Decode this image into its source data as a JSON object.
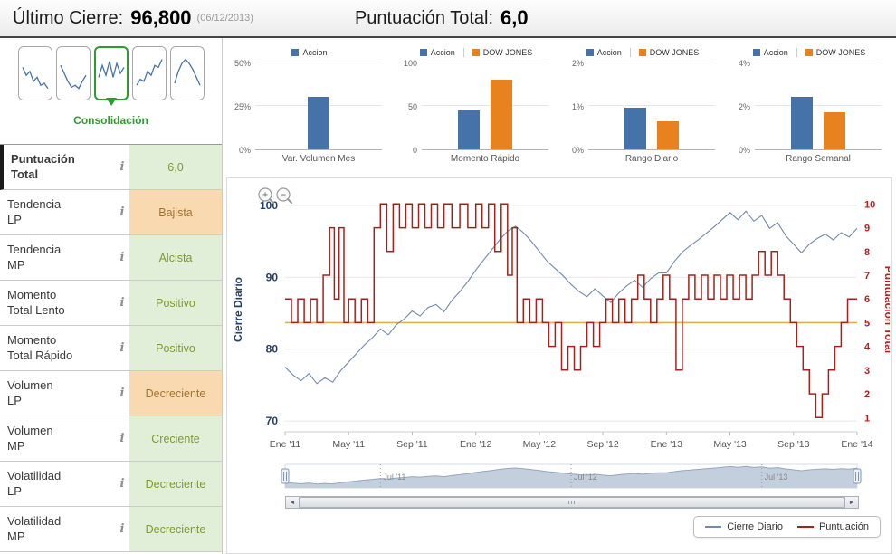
{
  "header": {
    "last_close_label": "Último Cierre:",
    "last_close_value": "96,800",
    "last_close_date": "(06/12/2013)",
    "score_label": "Puntuación Total:",
    "score_value": "6,0"
  },
  "phase": {
    "label": "Consolidación",
    "selected_index": 2,
    "thumbs": [
      {
        "name": "fase-1",
        "points": [
          35,
          55,
          45,
          70,
          60,
          80,
          75,
          88
        ]
      },
      {
        "name": "fase-2",
        "points": [
          30,
          50,
          70,
          85,
          80,
          88,
          70,
          55
        ]
      },
      {
        "name": "fase-3",
        "points": [
          60,
          30,
          55,
          20,
          60,
          25,
          50,
          35
        ]
      },
      {
        "name": "fase-4",
        "points": [
          80,
          65,
          70,
          45,
          55,
          30,
          35,
          15
        ]
      },
      {
        "name": "fase-5",
        "points": [
          75,
          45,
          25,
          15,
          25,
          40,
          60,
          80
        ]
      }
    ]
  },
  "indicators": {
    "info_icon": "i",
    "rows": [
      {
        "label": "Puntuación\nTotal",
        "value": "6,0",
        "tone": "green",
        "highlight": true
      },
      {
        "label": "Tendencia\nLP",
        "value": "Bajista",
        "tone": "orange",
        "highlight": false
      },
      {
        "label": "Tendencia\nMP",
        "value": "Alcista",
        "tone": "green",
        "highlight": false
      },
      {
        "label": "Momento\nTotal Lento",
        "value": "Positivo",
        "tone": "green",
        "highlight": false
      },
      {
        "label": "Momento\nTotal Rápido",
        "value": "Positivo",
        "tone": "green",
        "highlight": false
      },
      {
        "label": "Volumen\nLP",
        "value": "Decreciente",
        "tone": "orange",
        "highlight": false
      },
      {
        "label": "Volumen\nMP",
        "value": "Creciente",
        "tone": "green",
        "highlight": false
      },
      {
        "label": "Volatilidad\nLP",
        "value": "Decreciente",
        "tone": "green",
        "highlight": false
      },
      {
        "label": "Volatilidad\nMP",
        "value": "Decreciente",
        "tone": "green",
        "highlight": false
      }
    ]
  },
  "toolbar": {
    "zoom_in": "+",
    "zoom_out": "−"
  },
  "scrollbar": {
    "left_arrow": "◄",
    "right_arrow": "►"
  },
  "legend": {
    "items": [
      {
        "label": "Cierre Diario",
        "color_key": "cierre"
      },
      {
        "label": "Puntuación",
        "color_key": "puntuacion"
      }
    ]
  },
  "colors": {
    "accion": "#4573a7",
    "dow": "#e8821e",
    "cierre": "#7089ae",
    "puntuacion": "#a2231d",
    "threshold": "#d9b34a",
    "left_axis": "#24406e",
    "right_axis": "#b22222",
    "phase_green": "#2f9b2f",
    "green_bg": "#e1efd8",
    "green_text": "#7e9a34",
    "orange_bg": "#f9d9b0",
    "orange_text": "#a27431"
  },
  "chart_data": [
    {
      "id": "var_volumen_mes",
      "type": "bar",
      "categories": [
        "Var. Volumen Mes"
      ],
      "ylim": [
        0,
        50
      ],
      "yticks": [
        "0%",
        "25%",
        "50%"
      ],
      "ytick_values": [
        0,
        25,
        50
      ],
      "series": [
        {
          "name": "Accion",
          "color_key": "accion",
          "values": [
            30
          ]
        }
      ]
    },
    {
      "id": "momento_rapido",
      "type": "bar",
      "categories": [
        "Momento Rápido"
      ],
      "ylim": [
        0,
        100
      ],
      "yticks": [
        "0",
        "50",
        "100"
      ],
      "ytick_values": [
        0,
        50,
        100
      ],
      "series": [
        {
          "name": "Accion",
          "color_key": "accion",
          "values": [
            45
          ]
        },
        {
          "name": "DOW JONES",
          "color_key": "dow",
          "values": [
            80
          ]
        }
      ]
    },
    {
      "id": "rango_diario",
      "type": "bar",
      "categories": [
        "Rango Diario"
      ],
      "ylim": [
        0,
        2
      ],
      "yticks": [
        "0%",
        "1%",
        "2%"
      ],
      "ytick_values": [
        0,
        1,
        2
      ],
      "series": [
        {
          "name": "Accion",
          "color_key": "accion",
          "values": [
            0.95
          ]
        },
        {
          "name": "DOW JONES",
          "color_key": "dow",
          "values": [
            0.65
          ]
        }
      ]
    },
    {
      "id": "rango_semanal",
      "type": "bar",
      "categories": [
        "Rango Semanal"
      ],
      "ylim": [
        0,
        4
      ],
      "yticks": [
        "0%",
        "2%",
        "4%"
      ],
      "ytick_values": [
        0,
        2,
        4
      ],
      "series": [
        {
          "name": "Accion",
          "color_key": "accion",
          "values": [
            2.4
          ]
        },
        {
          "name": "DOW JONES",
          "color_key": "dow",
          "values": [
            1.7
          ]
        }
      ]
    },
    {
      "id": "main_chart",
      "type": "line",
      "xlim": [
        0,
        36
      ],
      "xticks": [
        {
          "x": 0,
          "label": "Ene '11"
        },
        {
          "x": 4,
          "label": "May '11"
        },
        {
          "x": 8,
          "label": "Sep '11"
        },
        {
          "x": 12,
          "label": "Ene '12"
        },
        {
          "x": 16,
          "label": "May '12"
        },
        {
          "x": 20,
          "label": "Sep '12"
        },
        {
          "x": 24,
          "label": "Ene '13"
        },
        {
          "x": 28,
          "label": "May '13"
        },
        {
          "x": 32,
          "label": "Sep '13"
        },
        {
          "x": 36,
          "label": "Ene '14"
        }
      ],
      "left_axis": {
        "label": "Cierre Diario",
        "ticks": [
          70,
          80,
          90,
          100
        ],
        "lim": [
          68.5,
          102.5
        ]
      },
      "right_axis": {
        "label": "Puntuacion Total",
        "ticks": [
          1,
          2,
          3,
          4,
          5,
          6,
          7,
          8,
          9,
          10
        ],
        "lim": [
          0.4,
          10.7
        ]
      },
      "threshold": {
        "axis": "right",
        "value": 5
      },
      "series": [
        {
          "name": "Cierre Diario",
          "axis": "left",
          "style": "line",
          "color_key": "cierre",
          "x_start": 0,
          "x_step": 0.5,
          "y": [
            77.5,
            76.4,
            75.6,
            76.6,
            75.2,
            76.0,
            75.4,
            77.0,
            78.2,
            79.4,
            80.6,
            81.6,
            82.8,
            82.0,
            83.4,
            84.2,
            85.3,
            84.6,
            85.8,
            86.2,
            85.2,
            86.8,
            88.0,
            89.4,
            91.0,
            92.4,
            93.8,
            95.2,
            96.4,
            97.1,
            96.2,
            95.0,
            93.6,
            92.2,
            91.2,
            90.2,
            89.0,
            88.0,
            87.3,
            88.4,
            87.4,
            86.5,
            87.8,
            88.8,
            89.6,
            88.6,
            89.8,
            90.6,
            90.6,
            92.2,
            93.5,
            94.4,
            95.2,
            96.1,
            97.0,
            98.0,
            99.0,
            98.0,
            99.2,
            97.8,
            98.6,
            96.8,
            97.6,
            95.8,
            94.6,
            93.4,
            94.6,
            95.4,
            96.0,
            95.2,
            96.2,
            95.6,
            96.8
          ]
        },
        {
          "name": "Puntuación",
          "axis": "right",
          "style": "step",
          "color_key": "puntuacion",
          "x": [
            0,
            0.4,
            0.8,
            1.2,
            1.6,
            2.0,
            2.4,
            2.8,
            3.1,
            3.4,
            3.7,
            4.0,
            4.4,
            4.8,
            5.2,
            5.6,
            6.0,
            6.4,
            6.8,
            7.2,
            7.6,
            8.0,
            8.4,
            8.8,
            9.2,
            9.6,
            10.0,
            10.5,
            11.0,
            11.5,
            12.0,
            12.4,
            12.8,
            13.2,
            13.6,
            14.0,
            14.3,
            14.6,
            15.0,
            15.4,
            15.8,
            16.2,
            16.6,
            17.0,
            17.4,
            17.8,
            18.2,
            18.6,
            19.0,
            19.4,
            19.8,
            20.2,
            20.6,
            21.0,
            21.4,
            21.8,
            22.2,
            22.6,
            23.0,
            23.4,
            23.8,
            24.2,
            24.6,
            25.0,
            25.4,
            25.8,
            26.2,
            26.6,
            27.0,
            27.4,
            27.8,
            28.2,
            28.6,
            29.0,
            29.4,
            29.8,
            30.2,
            30.6,
            31.0,
            31.4,
            31.8,
            32.2,
            32.6,
            33.0,
            33.4,
            33.8,
            34.2,
            34.6,
            35.0,
            35.4,
            36.0
          ],
          "y": [
            6,
            5,
            6,
            5,
            6,
            5,
            7,
            9,
            6,
            9,
            5,
            6,
            5,
            6,
            5,
            9,
            10,
            8,
            10,
            9,
            10,
            9,
            10,
            9,
            10,
            9,
            10,
            9,
            10,
            9,
            10,
            9,
            10,
            8,
            10,
            7,
            9,
            5,
            6,
            5,
            6,
            5,
            4,
            5,
            3,
            4,
            3,
            4,
            5,
            4,
            5,
            6,
            5,
            6,
            5,
            6,
            7,
            6,
            5,
            6,
            7,
            6,
            3,
            6,
            7,
            6,
            7,
            6,
            7,
            6,
            7,
            6,
            7,
            6,
            7,
            8,
            7,
            8,
            7,
            6,
            5,
            4,
            3,
            2,
            1,
            2,
            3,
            4,
            5,
            6,
            6
          ]
        }
      ]
    },
    {
      "id": "navigator",
      "type": "area",
      "source_series": "Cierre Diario",
      "labels": [
        {
          "x": 6,
          "label": "Jul '11"
        },
        {
          "x": 18,
          "label": "Jul '12"
        },
        {
          "x": 30,
          "label": "Jul '13"
        }
      ]
    }
  ]
}
